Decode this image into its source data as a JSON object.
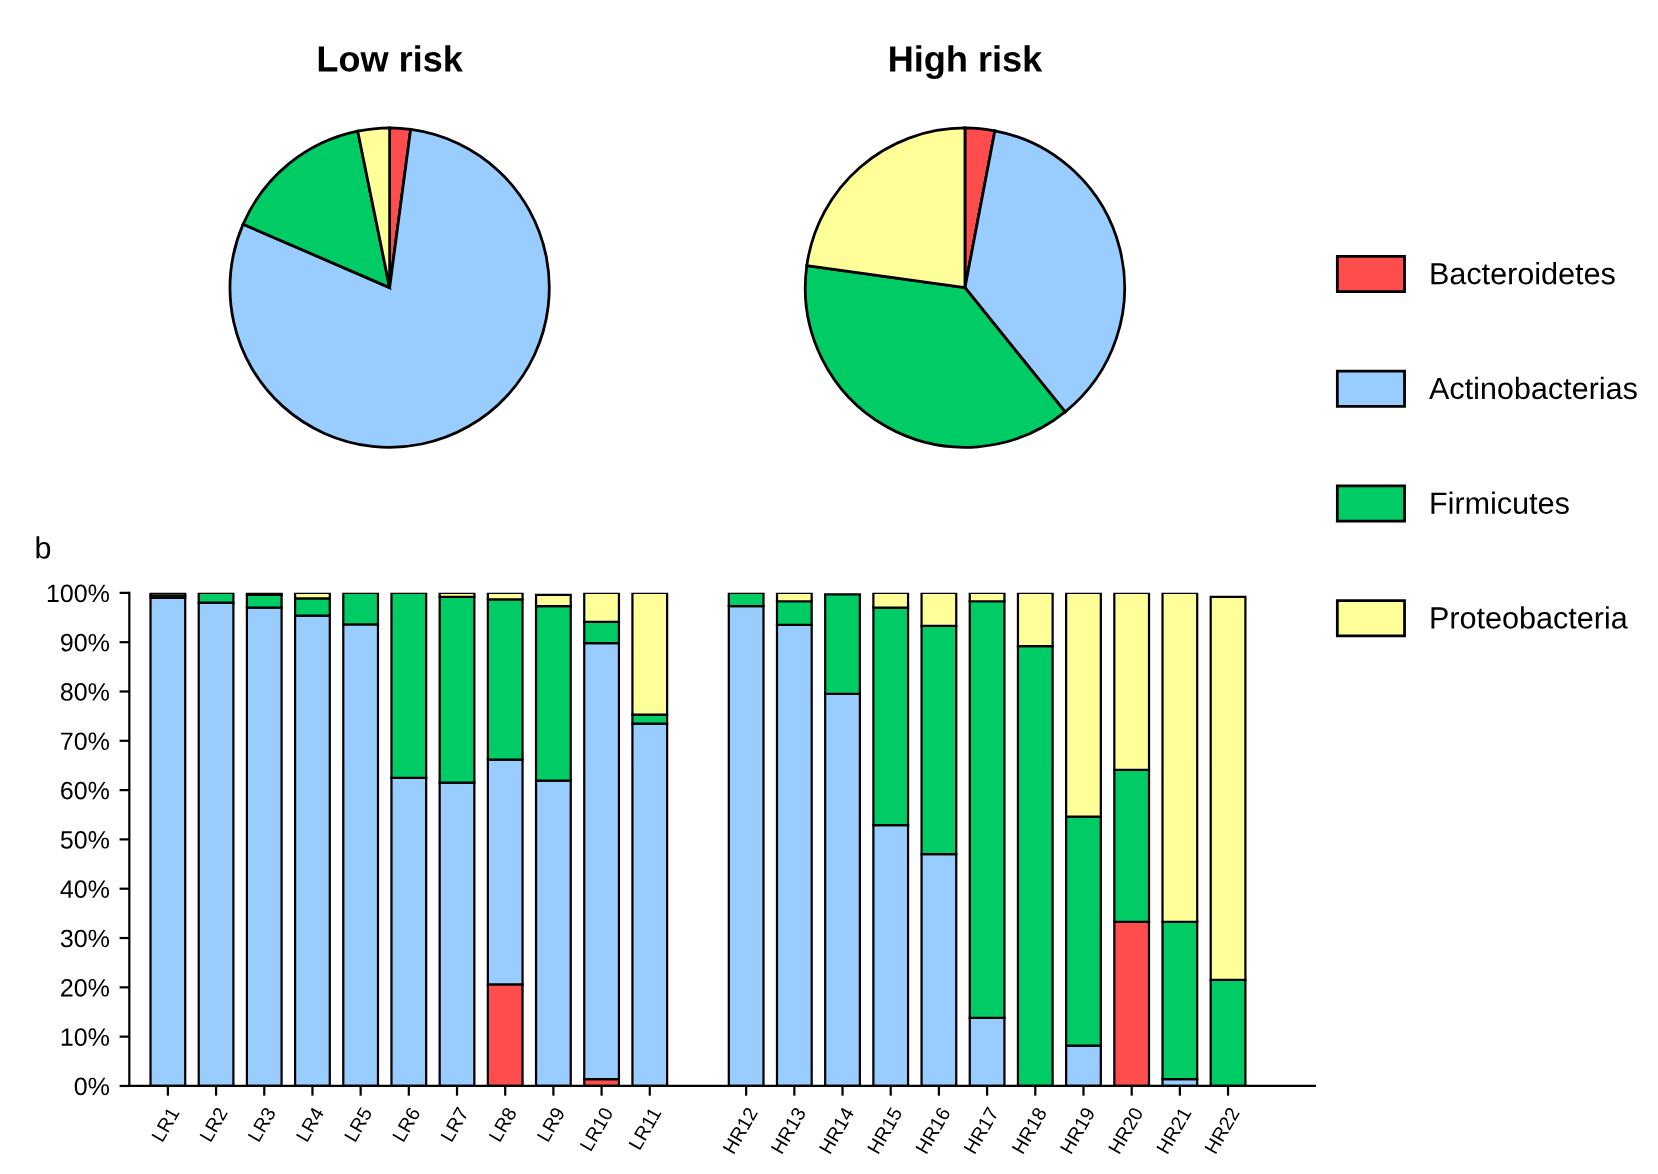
{
  "chart_data": [
    {
      "type": "pie",
      "title": "Low risk",
      "categories": [
        null,
        null,
        null,
        null
      ],
      "values": [
        2.1,
        79.4,
        15.3,
        3.2
      ],
      "colors": [
        "#ff4d4d",
        "#99ccff",
        "#00cc66",
        "#ffff99"
      ]
    },
    {
      "type": "pie",
      "title": "High risk",
      "categories": [
        null,
        null,
        null,
        null
      ],
      "values": [
        3.0,
        36.2,
        38.0,
        22.8
      ],
      "colors": [
        "#ff4d4d",
        "#99ccff",
        "#00cc66",
        "#ffff99"
      ]
    },
    {
      "type": "bar",
      "stacked": true,
      "legend": "right",
      "annotations": [
        "b"
      ],
      "categories": [
        "LR1",
        "LR2",
        "LR3",
        "LR4",
        "LR5",
        "LR6",
        "LR7",
        "LR8",
        "LR9",
        "LR10",
        "LR11",
        null,
        "HR12",
        "HR13",
        "HR14",
        "HR15",
        "HR16",
        "HR17",
        "HR18",
        "HR19",
        "HR20",
        "HR21",
        "HR22"
      ],
      "ylim": [
        0,
        100
      ],
      "yticks": [
        {
          "value": 0,
          "label": "0%"
        },
        {
          "value": 10,
          "label": "10%"
        },
        {
          "value": 20,
          "label": "20%"
        },
        {
          "value": 30,
          "label": "30%"
        },
        {
          "value": 40,
          "label": "40%"
        },
        {
          "value": 50,
          "label": "50%"
        },
        {
          "value": 60,
          "label": "60%"
        },
        {
          "value": 70,
          "label": "70%"
        },
        {
          "value": 80,
          "label": "80%"
        },
        {
          "value": 90,
          "label": "90%"
        },
        {
          "value": 100,
          "label": "100%"
        }
      ],
      "series": [
        {
          "name": "Bacteroidetes",
          "color": "#ff4d4d",
          "values": [
            null,
            null,
            null,
            null,
            null,
            null,
            null,
            20.6,
            null,
            1.4,
            null,
            null,
            null,
            null,
            null,
            null,
            null,
            null,
            null,
            null,
            33.3,
            null,
            null
          ]
        },
        {
          "name": "Actinobacterias",
          "color": "#99ccff",
          "values": [
            99.0,
            98.0,
            97.0,
            95.4,
            93.6,
            62.5,
            61.5,
            45.6,
            61.9,
            88.4,
            73.5,
            null,
            97.3,
            93.5,
            79.5,
            52.9,
            47.0,
            13.8,
            null,
            8.2,
            null,
            1.4,
            null
          ]
        },
        {
          "name": "Firmicutes",
          "color": "#00cc66",
          "values": [
            0.5,
            2.0,
            2.6,
            3.5,
            6.4,
            37.5,
            37.7,
            32.5,
            35.4,
            4.3,
            1.8,
            null,
            2.7,
            4.8,
            20.2,
            44.1,
            46.3,
            84.5,
            89.2,
            46.4,
            30.8,
            31.9,
            21.5
          ]
        },
        {
          "name": "Proteobacteria",
          "color": "#ffff99",
          "values": [
            0.5,
            null,
            0.4,
            1.1,
            null,
            null,
            0.8,
            1.3,
            2.3,
            5.9,
            24.7,
            null,
            null,
            1.7,
            null,
            3.0,
            6.7,
            1.7,
            10.8,
            45.4,
            35.9,
            66.7,
            77.7
          ]
        }
      ]
    }
  ]
}
